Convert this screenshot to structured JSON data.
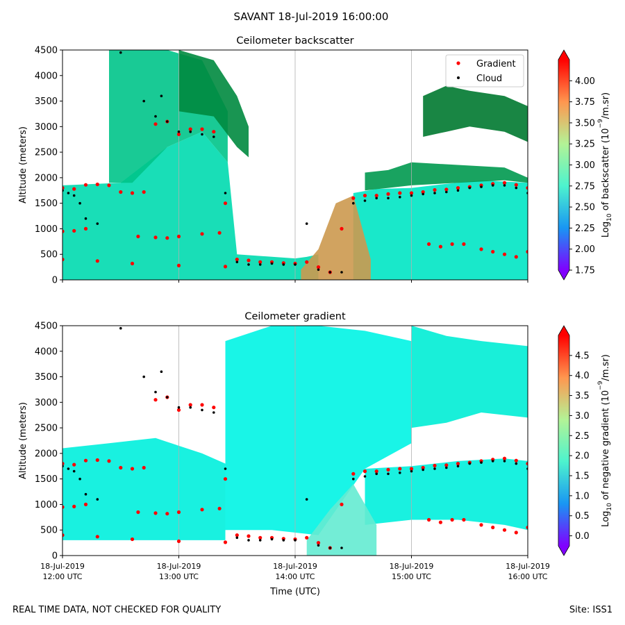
{
  "figure": {
    "title": "SAVANT 18-Jul-2019 16:00:00",
    "footer_left": "REAL TIME DATA, NOT CHECKED FOR QUALITY",
    "footer_right": "Site: ISS1",
    "xlabel": "Time (UTC)"
  },
  "colors": {
    "gradient_marker": "#ff0000",
    "cloud_marker": "#000000",
    "rainbow_low": "#8000ff",
    "rainbow_high": "#ff0000"
  },
  "chart_data": [
    {
      "type": "heatmap",
      "title": "Ceilometer backscatter",
      "ylabel": "Altitude (meters)",
      "ylim": [
        0,
        4500
      ],
      "yticks": [
        "0",
        "500",
        "1000",
        "1500",
        "2000",
        "2500",
        "3000",
        "3500",
        "4000",
        "4500"
      ],
      "xlim_hours_utc": [
        12,
        16
      ],
      "xtick_values": [
        12,
        13,
        14,
        15,
        16
      ],
      "show_xtick_labels": false,
      "grid": "vertical",
      "colormap": "rainbow",
      "colorbar": {
        "label_prefix": "Log",
        "label_sub": "10",
        "label_mid": " of backscatter (10",
        "label_sup": "−9",
        "label_suffix": "/m.sr)",
        "range": [
          1.75,
          4.25
        ],
        "ticks": [
          "1.75",
          "2.00",
          "2.25",
          "2.50",
          "2.75",
          "3.00",
          "3.25",
          "3.50",
          "3.75",
          "4.00"
        ],
        "tick_values": [
          1.75,
          2.0,
          2.25,
          2.5,
          2.75,
          3.0,
          3.25,
          3.5,
          3.75,
          4.0
        ],
        "extend": "both"
      },
      "legend": {
        "placement": "top-right",
        "entries": [
          {
            "label": "Gradient",
            "color": "#ff0000"
          },
          {
            "label": "Cloud",
            "color": "#000000"
          }
        ]
      },
      "layers": [
        {
          "name": "aerosol-layer",
          "value": 2.35,
          "x": [
            12.0,
            12.5,
            12.9,
            13.2,
            13.42,
            13.5,
            14.0,
            14.1,
            14.2
          ],
          "top": [
            1850,
            1900,
            2600,
            2900,
            2300,
            500,
            420,
            450,
            500
          ],
          "bottom": [
            0,
            0,
            0,
            0,
            0,
            0,
            0,
            0,
            0
          ]
        },
        {
          "name": "elevated-layer",
          "value": 2.2,
          "x": [
            12.4,
            12.6,
            12.9,
            13.2,
            13.42
          ],
          "top": [
            4500,
            4500,
            4500,
            4300,
            3300
          ],
          "bottom": [
            1900,
            1900,
            2600,
            2900,
            2300
          ]
        },
        {
          "name": "upper-haze",
          "value": 1.95,
          "x": [
            13.0,
            13.3,
            13.5,
            13.6
          ],
          "top": [
            4500,
            4300,
            3600,
            3000
          ],
          "bottom": [
            3300,
            3200,
            2600,
            2400
          ]
        },
        {
          "name": "afternoon-layer",
          "value": 2.45,
          "x": [
            14.5,
            14.7,
            15.0,
            15.3,
            15.6,
            16.0
          ],
          "top": [
            1700,
            1780,
            1800,
            1880,
            1950,
            1900
          ],
          "bottom": [
            0,
            0,
            0,
            0,
            0,
            0
          ]
        },
        {
          "name": "afternoon-haze",
          "value": 2.0,
          "x": [
            14.6,
            14.8,
            15.0,
            15.4,
            15.8,
            16.0
          ],
          "top": [
            2100,
            2150,
            2300,
            2250,
            2200,
            2000
          ],
          "bottom": [
            1750,
            1800,
            1850,
            1900,
            1950,
            1900
          ]
        },
        {
          "name": "upper-cloud-patch",
          "value": 1.9,
          "x": [
            15.1,
            15.3,
            15.5,
            15.8,
            16.0
          ],
          "top": [
            3600,
            3800,
            3700,
            3600,
            3400
          ],
          "bottom": [
            2800,
            2900,
            3000,
            2900,
            2700
          ]
        },
        {
          "name": "convective-plume",
          "value": 4.0,
          "x": [
            14.05,
            14.2,
            14.35,
            14.5,
            14.65
          ],
          "top": [
            200,
            600,
            1500,
            1650,
            400
          ],
          "bottom": [
            0,
            0,
            0,
            0,
            0
          ]
        }
      ],
      "series": [
        {
          "name": "Gradient",
          "x": [
            12.0,
            12.1,
            12.2,
            12.3,
            12.4,
            12.5,
            12.6,
            12.7,
            12.8,
            12.9,
            13.0,
            13.1,
            13.2,
            13.3,
            13.4,
            13.5,
            13.6,
            13.7,
            13.8,
            13.9,
            14.0,
            14.1,
            14.2,
            14.3,
            14.4,
            14.5,
            14.6,
            14.7,
            14.8,
            14.9,
            15.0,
            15.1,
            15.2,
            15.3,
            15.4,
            15.5,
            15.6,
            15.7,
            15.8,
            15.9,
            16.0
          ],
          "y": [
            1800,
            1780,
            1860,
            1870,
            1850,
            1720,
            1700,
            1720,
            3050,
            3100,
            2850,
            2950,
            2950,
            2900,
            1500,
            400,
            380,
            350,
            350,
            330,
            320,
            350,
            250,
            150,
            1000,
            1600,
            1650,
            1650,
            1680,
            1700,
            1700,
            1720,
            1760,
            1770,
            1800,
            1820,
            1850,
            1880,
            1900,
            1860,
            1800
          ]
        },
        {
          "name": "Gradient",
          "x": [
            12.0,
            12.3,
            12.6,
            13.0,
            13.4
          ],
          "y": [
            400,
            370,
            320,
            280,
            260
          ]
        },
        {
          "name": "Gradient",
          "x": [
            12.0,
            12.1,
            12.2
          ],
          "y": [
            950,
            960,
            1000
          ]
        },
        {
          "name": "Gradient",
          "x": [
            12.65,
            12.8,
            12.9,
            13.0,
            13.2,
            13.35
          ],
          "y": [
            850,
            830,
            820,
            850,
            900,
            920
          ]
        },
        {
          "name": "Gradient",
          "x": [
            15.15,
            15.25,
            15.35,
            15.45
          ],
          "y": [
            700,
            650,
            700,
            700
          ]
        },
        {
          "name": "Gradient",
          "x": [
            15.6,
            15.7,
            15.8,
            15.9,
            16.0
          ],
          "y": [
            600,
            550,
            500,
            450,
            550
          ]
        },
        {
          "name": "Cloud",
          "x": [
            12.0,
            12.05,
            12.1,
            12.15,
            12.2,
            12.3,
            12.5,
            12.7,
            12.8,
            12.85,
            12.9,
            13.0,
            13.1,
            13.2,
            13.3,
            13.4,
            13.5,
            13.6,
            13.7,
            13.8,
            13.9,
            14.0,
            14.1,
            14.2,
            14.3,
            14.4,
            14.5,
            14.6,
            14.7,
            14.8,
            14.9,
            15.0,
            15.1,
            15.2,
            15.3,
            15.4,
            15.5,
            15.6,
            15.7,
            15.8,
            15.9,
            16.0
          ],
          "y": [
            1750,
            1700,
            1650,
            1500,
            1200,
            1100,
            4450,
            3500,
            3200,
            3600,
            3100,
            2900,
            2900,
            2850,
            2800,
            1700,
            350,
            300,
            300,
            320,
            300,
            300,
            1100,
            200,
            150,
            150,
            1500,
            1550,
            1600,
            1600,
            1620,
            1650,
            1680,
            1700,
            1720,
            1750,
            1800,
            1820,
            1850,
            1850,
            1800,
            1700
          ]
        }
      ]
    },
    {
      "type": "heatmap",
      "title": "Ceilometer gradient",
      "ylabel": "Altitude (meters)",
      "ylim": [
        0,
        4500
      ],
      "yticks": [
        "0",
        "500",
        "1000",
        "1500",
        "2000",
        "2500",
        "3000",
        "3500",
        "4000",
        "4500"
      ],
      "xlim_hours_utc": [
        12,
        16
      ],
      "xtick_values": [
        12,
        13,
        14,
        15,
        16
      ],
      "xtick_labels": [
        [
          "18-Jul-2019",
          "12:00 UTC"
        ],
        [
          "18-Jul-2019",
          "13:00 UTC"
        ],
        [
          "18-Jul-2019",
          "14:00 UTC"
        ],
        [
          "18-Jul-2019",
          "15:00 UTC"
        ],
        [
          "18-Jul-2019",
          "16:00 UTC"
        ]
      ],
      "show_xtick_labels": true,
      "grid": "vertical",
      "colormap": "rainbow",
      "colorbar": {
        "label_prefix": "Log",
        "label_sub": "10",
        "label_mid": " of negative gradient (10",
        "label_sup": "−9",
        "label_suffix": "/m.sr)",
        "range": [
          -0.25,
          5.0
        ],
        "ticks": [
          "0.0",
          "0.5",
          "1.0",
          "1.5",
          "2.0",
          "2.5",
          "3.0",
          "3.5",
          "4.0",
          "4.5"
        ],
        "tick_values": [
          0.0,
          0.5,
          1.0,
          1.5,
          2.0,
          2.5,
          3.0,
          3.5,
          4.0,
          4.5
        ],
        "extend": "both"
      },
      "layers": [
        {
          "name": "midday-field",
          "value": 1.6,
          "x": [
            13.4,
            13.8,
            14.2,
            14.6,
            15.0
          ],
          "top": [
            4200,
            4500,
            4500,
            4400,
            4200
          ],
          "bottom": [
            500,
            500,
            400,
            1700,
            2200
          ]
        },
        {
          "name": "boundary-field",
          "value": 1.5,
          "x": [
            12.0,
            12.4,
            12.8,
            13.2,
            13.4
          ],
          "top": [
            2100,
            2200,
            2300,
            2000,
            1800
          ],
          "bottom": [
            300,
            300,
            300,
            300,
            300
          ]
        },
        {
          "name": "afternoon-field",
          "value": 1.5,
          "x": [
            14.6,
            15.0,
            15.4,
            15.8,
            16.0
          ],
          "top": [
            1700,
            1750,
            1850,
            1900,
            1850
          ],
          "bottom": [
            600,
            700,
            700,
            600,
            500
          ]
        },
        {
          "name": "upper-field",
          "value": 1.4,
          "x": [
            15.0,
            15.3,
            15.6,
            16.0
          ],
          "top": [
            4500,
            4300,
            4200,
            4100
          ],
          "bottom": [
            2500,
            2600,
            2800,
            2700
          ]
        },
        {
          "name": "convective-plume",
          "value": 3.4,
          "x": [
            14.1,
            14.3,
            14.5,
            14.7
          ],
          "top": [
            300,
            900,
            1400,
            600
          ],
          "bottom": [
            0,
            0,
            0,
            0
          ]
        }
      ],
      "series": [
        {
          "name": "Gradient",
          "x": [
            12.0,
            12.1,
            12.2,
            12.3,
            12.4,
            12.5,
            12.6,
            12.7,
            12.8,
            12.9,
            13.0,
            13.1,
            13.2,
            13.3,
            13.4,
            13.5,
            13.6,
            13.7,
            13.8,
            13.9,
            14.0,
            14.1,
            14.2,
            14.3,
            14.4,
            14.5,
            14.6,
            14.7,
            14.8,
            14.9,
            15.0,
            15.1,
            15.2,
            15.3,
            15.4,
            15.5,
            15.6,
            15.7,
            15.8,
            15.9,
            16.0
          ],
          "y": [
            1800,
            1780,
            1860,
            1870,
            1850,
            1720,
            1700,
            1720,
            3050,
            3100,
            2850,
            2950,
            2950,
            2900,
            1500,
            400,
            380,
            350,
            350,
            330,
            320,
            350,
            250,
            150,
            1000,
            1600,
            1650,
            1650,
            1680,
            1700,
            1700,
            1720,
            1760,
            1770,
            1800,
            1820,
            1850,
            1880,
            1900,
            1860,
            1800
          ]
        },
        {
          "name": "Gradient",
          "x": [
            12.0,
            12.3,
            12.6,
            13.0,
            13.4
          ],
          "y": [
            400,
            370,
            320,
            280,
            260
          ]
        },
        {
          "name": "Gradient",
          "x": [
            12.0,
            12.1,
            12.2
          ],
          "y": [
            950,
            960,
            1000
          ]
        },
        {
          "name": "Gradient",
          "x": [
            12.65,
            12.8,
            12.9,
            13.0,
            13.2,
            13.35
          ],
          "y": [
            850,
            830,
            820,
            850,
            900,
            920
          ]
        },
        {
          "name": "Gradient",
          "x": [
            15.15,
            15.25,
            15.35,
            15.45
          ],
          "y": [
            700,
            650,
            700,
            700
          ]
        },
        {
          "name": "Gradient",
          "x": [
            15.6,
            15.7,
            15.8,
            15.9,
            16.0
          ],
          "y": [
            600,
            550,
            500,
            450,
            550
          ]
        },
        {
          "name": "Cloud",
          "x": [
            12.0,
            12.05,
            12.1,
            12.15,
            12.2,
            12.3,
            12.5,
            12.7,
            12.8,
            12.85,
            12.9,
            13.0,
            13.1,
            13.2,
            13.3,
            13.4,
            13.5,
            13.6,
            13.7,
            13.8,
            13.9,
            14.0,
            14.1,
            14.2,
            14.3,
            14.4,
            14.5,
            14.6,
            14.7,
            14.8,
            14.9,
            15.0,
            15.1,
            15.2,
            15.3,
            15.4,
            15.5,
            15.6,
            15.7,
            15.8,
            15.9,
            16.0
          ],
          "y": [
            1750,
            1700,
            1650,
            1500,
            1200,
            1100,
            4450,
            3500,
            3200,
            3600,
            3100,
            2900,
            2900,
            2850,
            2800,
            1700,
            350,
            300,
            300,
            320,
            300,
            300,
            1100,
            200,
            150,
            150,
            1500,
            1550,
            1600,
            1600,
            1620,
            1650,
            1680,
            1700,
            1720,
            1750,
            1800,
            1820,
            1850,
            1850,
            1800,
            1700
          ]
        }
      ]
    }
  ]
}
